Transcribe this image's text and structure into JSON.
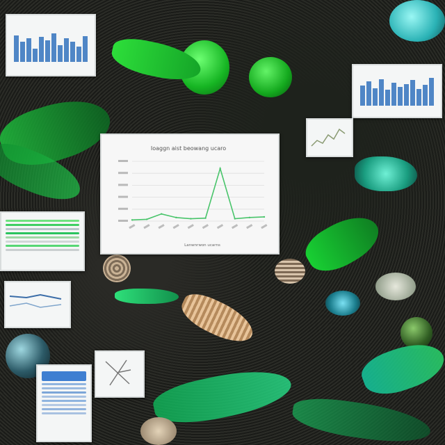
{
  "chart_data": {
    "type": "line",
    "title": "Ioaggn aist beowang ucaro",
    "xlabel": "Lanwnrwon ucarns",
    "ylabel": "",
    "x": [
      1,
      2,
      3,
      4,
      5,
      6,
      7,
      8,
      9,
      10
    ],
    "series": [
      {
        "values": [
          2,
          3,
          12,
          6,
          4,
          5,
          88,
          4,
          6,
          7
        ]
      }
    ],
    "ylim": [
      0,
      100
    ],
    "grid": true
  },
  "colors": {
    "accent_green": "#35e04a",
    "line_green": "#48c46a",
    "bar_blue": "#4f86c6"
  }
}
